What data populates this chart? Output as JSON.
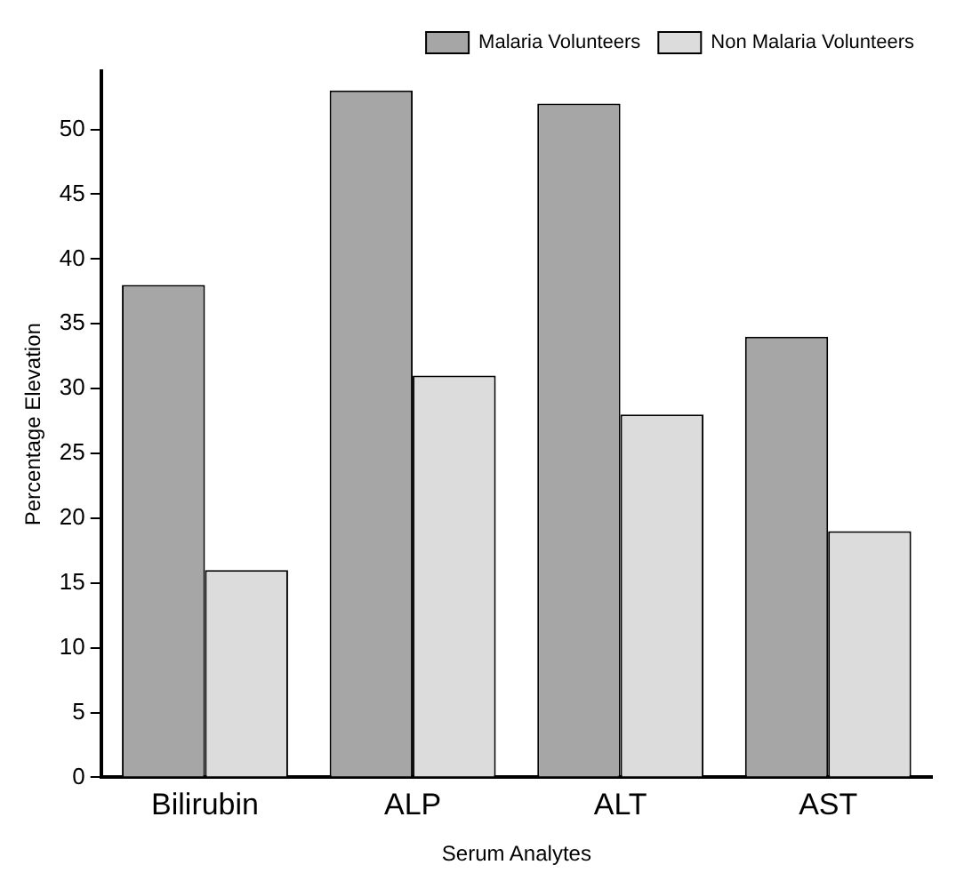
{
  "chart_data": {
    "type": "bar",
    "xlabel": "Serum Analytes",
    "ylabel": "Percentage Elevation",
    "categories": [
      "Bilirubin",
      "ALP",
      "ALT",
      "AST"
    ],
    "series": [
      {
        "name": "Malaria Volunteers",
        "color": "#a6a6a6",
        "values": [
          38,
          53,
          52,
          34
        ]
      },
      {
        "name": "Non Malaria Volunteers",
        "color": "#dcdcdc",
        "values": [
          16,
          31,
          28,
          19
        ]
      }
    ],
    "ylim": [
      0,
      54.5
    ],
    "yticks": [
      0,
      5,
      10,
      15,
      20,
      25,
      30,
      35,
      40,
      45,
      50
    ],
    "grid": false,
    "legend": "top right"
  }
}
